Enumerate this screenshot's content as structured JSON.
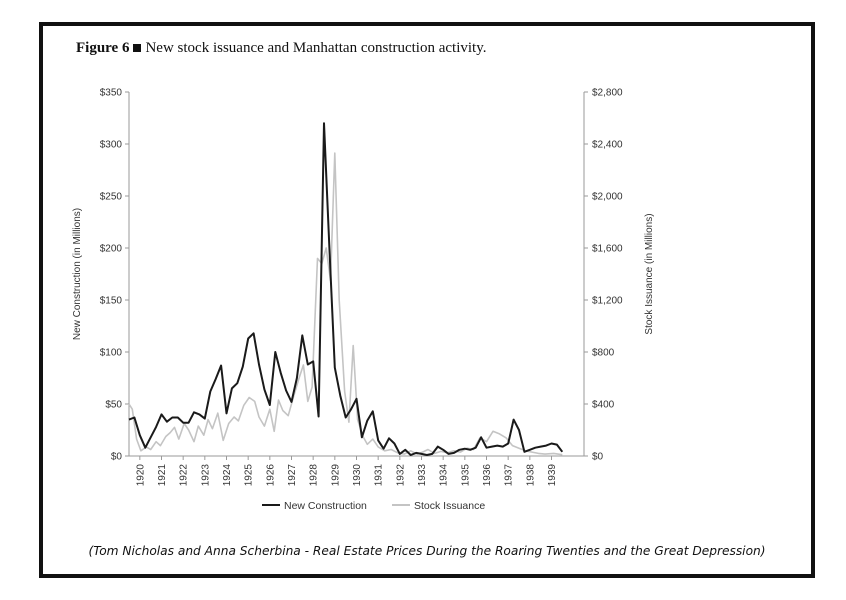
{
  "figure": {
    "label": "Figure 6",
    "title": "New stock issuance and Manhattan construction activity."
  },
  "caption": "(Tom Nicholas and Anna Scherbina - Real Estate Prices During the Roaring Twenties and the Great Depression)",
  "chart_data": {
    "type": "line",
    "x_ticks": [
      "1920",
      "1921",
      "1922",
      "1923",
      "1924",
      "1925",
      "1926",
      "1927",
      "1928",
      "1929",
      "1930",
      "1931",
      "1932",
      "1933",
      "1934",
      "1935",
      "1936",
      "1937",
      "1938",
      "1939"
    ],
    "xlim": [
      1920,
      1941
    ],
    "ylabel_left": "New Construction (in Millions)",
    "ylabel_right": "Stock Issuance (in Millions)",
    "ylim_left": [
      0,
      350
    ],
    "ylim_right": [
      0,
      2800
    ],
    "yticks_left": [
      "$0",
      "$50",
      "$100",
      "$150",
      "$200",
      "$250",
      "$300",
      "$350"
    ],
    "yticks_right": [
      "$0",
      "$400",
      "$800",
      "$1,200",
      "$1,600",
      "$2,000",
      "$2,400",
      "$2,800"
    ],
    "grid": false,
    "legend_position": "bottom",
    "series": [
      {
        "name": "New Construction",
        "axis": "left",
        "color": "#1a1a1a",
        "points": [
          [
            1920.0,
            35
          ],
          [
            1920.25,
            37
          ],
          [
            1920.5,
            20
          ],
          [
            1920.75,
            8
          ],
          [
            1921.0,
            18
          ],
          [
            1921.25,
            28
          ],
          [
            1921.5,
            40
          ],
          [
            1921.75,
            33
          ],
          [
            1922.0,
            37
          ],
          [
            1922.25,
            37
          ],
          [
            1922.5,
            32
          ],
          [
            1922.75,
            32
          ],
          [
            1923.0,
            42
          ],
          [
            1923.25,
            40
          ],
          [
            1923.5,
            36
          ],
          [
            1923.75,
            62
          ],
          [
            1924.0,
            74
          ],
          [
            1924.25,
            87
          ],
          [
            1924.5,
            41
          ],
          [
            1924.75,
            65
          ],
          [
            1925.0,
            70
          ],
          [
            1925.25,
            86
          ],
          [
            1925.5,
            113
          ],
          [
            1925.75,
            118
          ],
          [
            1926.0,
            88
          ],
          [
            1926.25,
            64
          ],
          [
            1926.5,
            49
          ],
          [
            1926.75,
            100
          ],
          [
            1927.0,
            80
          ],
          [
            1927.25,
            63
          ],
          [
            1927.5,
            52
          ],
          [
            1927.75,
            75
          ],
          [
            1928.0,
            116
          ],
          [
            1928.25,
            88
          ],
          [
            1928.5,
            91
          ],
          [
            1928.75,
            38
          ],
          [
            1929.0,
            320
          ],
          [
            1929.25,
            200
          ],
          [
            1929.5,
            85
          ],
          [
            1929.75,
            58
          ],
          [
            1930.0,
            37
          ],
          [
            1930.25,
            45
          ],
          [
            1930.5,
            55
          ],
          [
            1930.75,
            18
          ],
          [
            1931.0,
            34
          ],
          [
            1931.25,
            43
          ],
          [
            1931.5,
            15
          ],
          [
            1931.75,
            7
          ],
          [
            1932.0,
            17
          ],
          [
            1932.25,
            12
          ],
          [
            1932.5,
            2
          ],
          [
            1932.75,
            6
          ],
          [
            1933.0,
            1
          ],
          [
            1933.25,
            3
          ],
          [
            1933.5,
            2
          ],
          [
            1933.75,
            1
          ],
          [
            1934.0,
            2
          ],
          [
            1934.25,
            9
          ],
          [
            1934.5,
            6
          ],
          [
            1934.75,
            2
          ],
          [
            1935.0,
            3
          ],
          [
            1935.25,
            6
          ],
          [
            1935.5,
            7
          ],
          [
            1935.75,
            6
          ],
          [
            1936.0,
            8
          ],
          [
            1936.25,
            18
          ],
          [
            1936.5,
            8
          ],
          [
            1936.75,
            9
          ],
          [
            1937.0,
            10
          ],
          [
            1937.25,
            9
          ],
          [
            1937.5,
            12
          ],
          [
            1937.75,
            35
          ],
          [
            1938.0,
            25
          ],
          [
            1938.25,
            4
          ],
          [
            1938.5,
            6
          ],
          [
            1938.75,
            8
          ],
          [
            1939.0,
            9
          ],
          [
            1939.25,
            10
          ],
          [
            1939.5,
            12
          ],
          [
            1939.75,
            11
          ],
          [
            1940.0,
            4
          ]
        ]
      },
      {
        "name": "Stock Issuance",
        "axis": "right",
        "color": "#c4c4c4",
        "points": [
          [
            1920.0,
            400
          ],
          [
            1920.15,
            360
          ],
          [
            1920.35,
            130
          ],
          [
            1920.55,
            40
          ],
          [
            1920.8,
            70
          ],
          [
            1921.0,
            50
          ],
          [
            1921.25,
            110
          ],
          [
            1921.45,
            80
          ],
          [
            1921.7,
            150
          ],
          [
            1921.9,
            180
          ],
          [
            1922.1,
            220
          ],
          [
            1922.3,
            130
          ],
          [
            1922.55,
            250
          ],
          [
            1922.75,
            200
          ],
          [
            1923.0,
            110
          ],
          [
            1923.2,
            230
          ],
          [
            1923.45,
            160
          ],
          [
            1923.65,
            280
          ],
          [
            1923.85,
            210
          ],
          [
            1924.1,
            330
          ],
          [
            1924.35,
            120
          ],
          [
            1924.6,
            250
          ],
          [
            1924.85,
            300
          ],
          [
            1925.05,
            270
          ],
          [
            1925.3,
            390
          ],
          [
            1925.55,
            450
          ],
          [
            1925.8,
            420
          ],
          [
            1926.0,
            300
          ],
          [
            1926.25,
            230
          ],
          [
            1926.5,
            360
          ],
          [
            1926.7,
            190
          ],
          [
            1926.9,
            430
          ],
          [
            1927.1,
            350
          ],
          [
            1927.35,
            310
          ],
          [
            1927.6,
            460
          ],
          [
            1927.85,
            600
          ],
          [
            1928.05,
            700
          ],
          [
            1928.25,
            420
          ],
          [
            1928.45,
            530
          ],
          [
            1928.7,
            1520
          ],
          [
            1928.9,
            1480
          ],
          [
            1929.1,
            1600
          ],
          [
            1929.3,
            1350
          ],
          [
            1929.5,
            2330
          ],
          [
            1929.7,
            1200
          ],
          [
            1929.95,
            500
          ],
          [
            1930.15,
            260
          ],
          [
            1930.35,
            850
          ],
          [
            1930.55,
            280
          ],
          [
            1930.8,
            150
          ],
          [
            1931.0,
            90
          ],
          [
            1931.25,
            130
          ],
          [
            1931.5,
            70
          ],
          [
            1931.8,
            40
          ],
          [
            1932.1,
            50
          ],
          [
            1932.4,
            25
          ],
          [
            1932.7,
            15
          ],
          [
            1933.0,
            40
          ],
          [
            1933.3,
            15
          ],
          [
            1933.55,
            30
          ],
          [
            1933.8,
            50
          ],
          [
            1934.1,
            20
          ],
          [
            1934.4,
            35
          ],
          [
            1934.7,
            25
          ],
          [
            1935.0,
            40
          ],
          [
            1935.3,
            30
          ],
          [
            1935.6,
            60
          ],
          [
            1935.9,
            50
          ],
          [
            1936.2,
            140
          ],
          [
            1936.5,
            110
          ],
          [
            1936.8,
            190
          ],
          [
            1937.1,
            170
          ],
          [
            1937.4,
            140
          ],
          [
            1937.7,
            80
          ],
          [
            1938.0,
            60
          ],
          [
            1938.3,
            40
          ],
          [
            1938.6,
            30
          ],
          [
            1938.9,
            20
          ],
          [
            1939.2,
            15
          ],
          [
            1939.6,
            20
          ],
          [
            1940.0,
            10
          ]
        ]
      }
    ]
  }
}
